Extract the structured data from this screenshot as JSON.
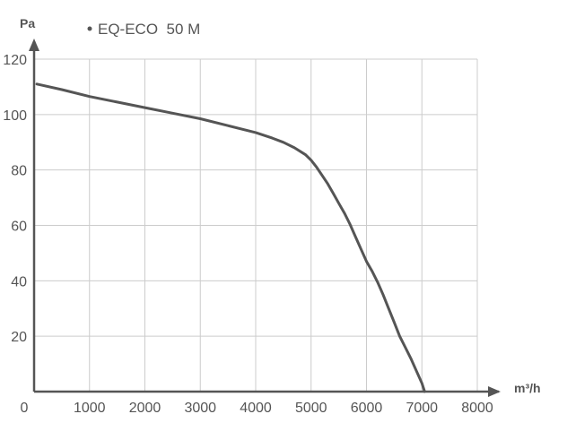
{
  "chart_data": {
    "type": "line",
    "title": "",
    "xlabel": "m³/h",
    "ylabel": "Pa",
    "xlim": [
      0,
      8000
    ],
    "ylim": [
      0,
      120
    ],
    "grid": true,
    "legend_position": "top-left",
    "x_ticks": [
      "0",
      "1000",
      "2000",
      "3000",
      "4000",
      "5000",
      "6000",
      "7000",
      "8000"
    ],
    "y_ticks": [
      "20",
      "40",
      "60",
      "80",
      "100",
      "120"
    ],
    "series": [
      {
        "name": "EQ-ECO  50 M",
        "color": "#555555",
        "x": [
          50,
          500,
          1000,
          1500,
          2000,
          2500,
          3000,
          3500,
          4000,
          4300,
          4500,
          4700,
          4900,
          5000,
          5100,
          5200,
          5300,
          5400,
          5500,
          5600,
          5700,
          5800,
          5900,
          6000,
          6100,
          6200,
          6300,
          6400,
          6500,
          6600,
          6700,
          6800,
          6900,
          7000,
          7050
        ],
        "y": [
          111,
          109,
          106.5,
          104.5,
          102.5,
          100.5,
          98.5,
          96,
          93.5,
          91.5,
          90,
          88,
          85.5,
          83.5,
          81,
          78,
          75,
          71.5,
          68,
          64.5,
          60.5,
          56,
          51.5,
          47,
          43.5,
          39.5,
          35,
          30,
          25,
          20,
          16,
          12,
          7.5,
          3,
          0
        ]
      }
    ]
  },
  "colors": {
    "axis": "#555555",
    "grid": "#cccccc",
    "line": "#555555"
  }
}
